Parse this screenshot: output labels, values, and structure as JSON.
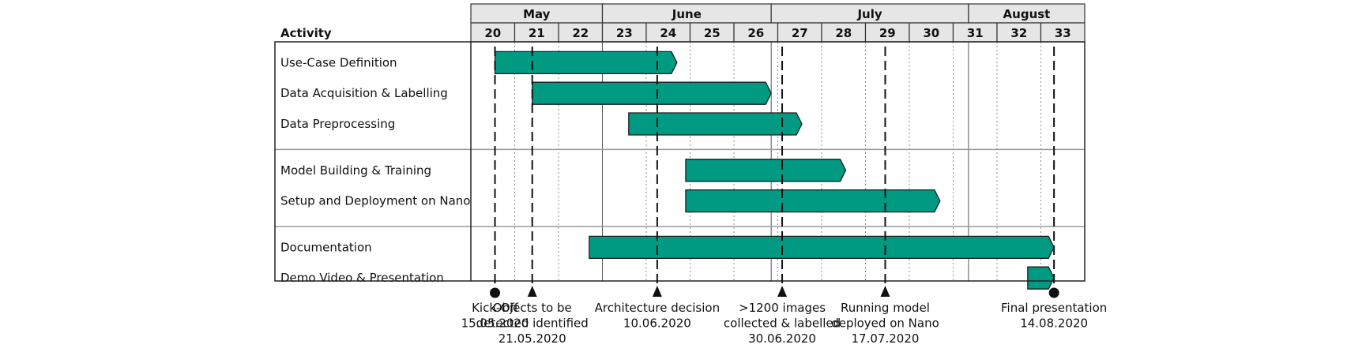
{
  "chart_data": {
    "type": "gantt",
    "activity_header": "Activity",
    "months": [
      {
        "label": "May",
        "weeks": [
          20,
          21,
          22
        ]
      },
      {
        "label": "June",
        "weeks": [
          23,
          24,
          25,
          26
        ]
      },
      {
        "label": "July",
        "weeks": [
          27,
          28,
          29,
          30,
          31
        ]
      },
      {
        "label": "August",
        "weeks": [
          32,
          33
        ]
      }
    ],
    "week_labels": [
      "20",
      "21",
      "22",
      "23",
      "24",
      "25",
      "26",
      "27",
      "28",
      "29",
      "30",
      "31",
      "32",
      "33"
    ],
    "week_range": [
      20,
      34
    ],
    "month_boundaries_week": [
      23,
      26.85,
      31.35
    ],
    "groups": [
      [
        {
          "name": "Use-Case Definition",
          "start": 20.55,
          "end": 24.7
        },
        {
          "name": "Data Acquisition & Labelling",
          "start": 21.4,
          "end": 26.85
        },
        {
          "name": "Data Preprocessing",
          "start": 23.6,
          "end": 27.55
        }
      ],
      [
        {
          "name": "Model Building & Training",
          "start": 24.9,
          "end": 28.55
        },
        {
          "name": "Setup and Deployment on Nano",
          "start": 24.9,
          "end": 30.7
        }
      ],
      [
        {
          "name": "Documentation",
          "start": 22.7,
          "end": 33.3
        },
        {
          "name": "Demo Video & Presentation",
          "start": 32.7,
          "end": 33.3
        }
      ]
    ],
    "milestones": [
      {
        "week": 20.55,
        "marker": "circle",
        "lines": [
          "Kick-Off",
          "15.05.2020"
        ]
      },
      {
        "week": 21.4,
        "marker": "triangle",
        "lines": [
          "Objects to be",
          "detected identified",
          "21.05.2020"
        ]
      },
      {
        "week": 24.25,
        "marker": "triangle",
        "lines": [
          "Architecture decision",
          "10.06.2020"
        ]
      },
      {
        "week": 27.1,
        "marker": "triangle",
        "lines": [
          ">1200 images",
          "collected & labelled",
          "30.06.2020"
        ]
      },
      {
        "week": 29.45,
        "marker": "triangle",
        "lines": [
          "Running model",
          "deployed on Nano",
          "17.07.2020"
        ]
      },
      {
        "week": 33.3,
        "marker": "circle",
        "lines": [
          "Final presentation",
          "14.08.2020"
        ]
      }
    ],
    "colors": {
      "bar": "#009a82",
      "bar_stroke": "#1d1d1b",
      "header_fill": "#e6e6e6",
      "grid": "#8c8c8c"
    }
  }
}
